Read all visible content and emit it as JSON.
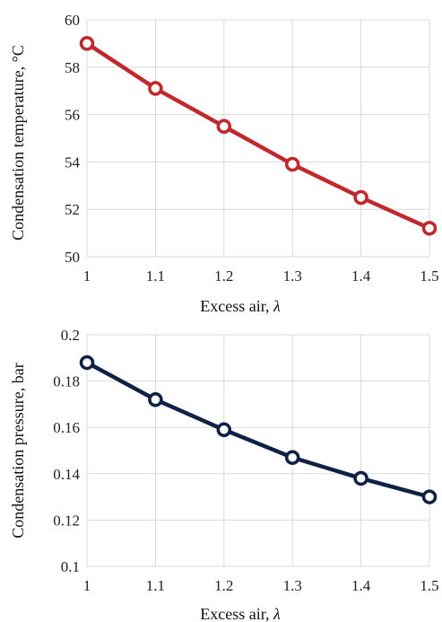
{
  "chart_data": [
    {
      "type": "line",
      "title": "",
      "xlabel": "Excess air, ",
      "xlabel_symbol": "λ",
      "ylabel": "Condensation temperature, °C",
      "x_ticks": [
        "1",
        "1.1",
        "1.2",
        "1.3",
        "1.4",
        "1.5"
      ],
      "y_ticks": [
        "50",
        "52",
        "54",
        "56",
        "58",
        "60"
      ],
      "xlim": [
        1,
        1.5
      ],
      "ylim": [
        50,
        60
      ],
      "grid": true,
      "series": [
        {
          "color": "#c0282d",
          "x": [
            1,
            1.1,
            1.2,
            1.3,
            1.4,
            1.5
          ],
          "y": [
            59.0,
            57.1,
            55.5,
            53.9,
            52.5,
            51.2
          ]
        }
      ]
    },
    {
      "type": "line",
      "title": "",
      "xlabel": "Excess air, ",
      "xlabel_symbol": "λ",
      "ylabel": "Condensation pressure, bar",
      "x_ticks": [
        "1",
        "1.1",
        "1.2",
        "1.3",
        "1.4",
        "1.5"
      ],
      "y_ticks": [
        "0.1",
        "0.12",
        "0.14",
        "0.16",
        "0.18",
        "0.2"
      ],
      "xlim": [
        1,
        1.5
      ],
      "ylim": [
        0.1,
        0.2
      ],
      "grid": true,
      "series": [
        {
          "color": "#0f2145",
          "x": [
            1,
            1.1,
            1.2,
            1.3,
            1.4,
            1.5
          ],
          "y": [
            0.188,
            0.172,
            0.159,
            0.147,
            0.138,
            0.13
          ]
        }
      ]
    }
  ]
}
